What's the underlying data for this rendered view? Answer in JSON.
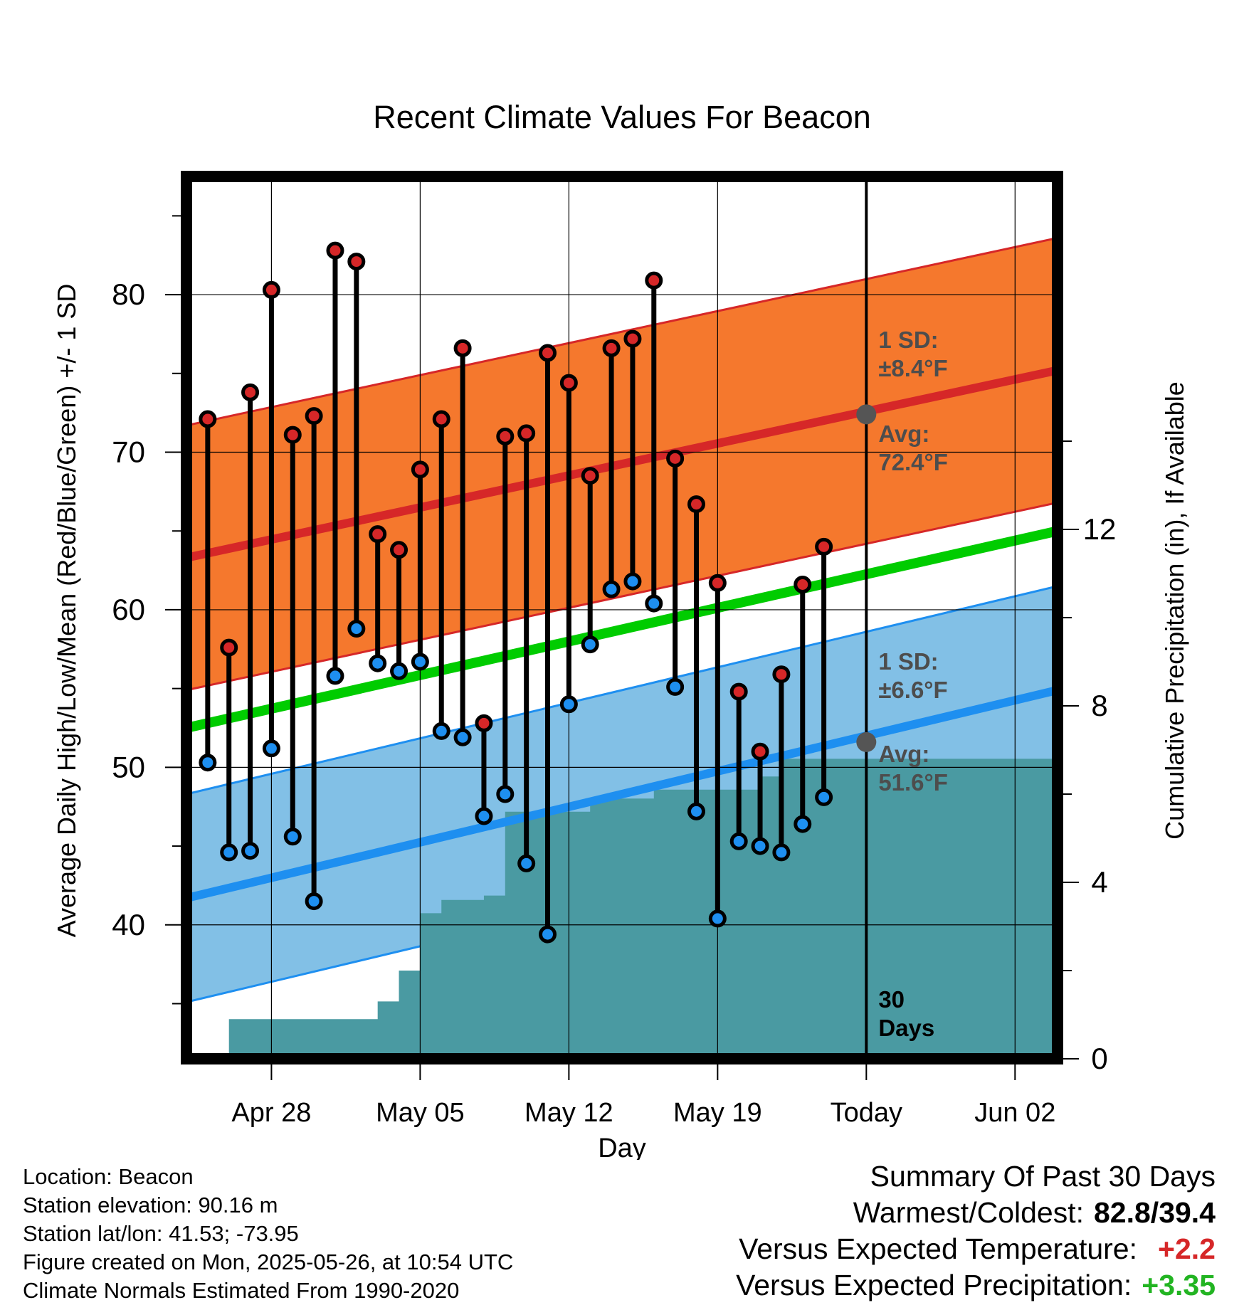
{
  "chart_data": {
    "type": "line",
    "title": "Recent Climate Values For Beacon",
    "xlabel": "Day",
    "ylabel": "Average Daily High/Low/Mean (Red/Blue/Green) +/- 1 SD",
    "y2label": "Cumulative Precipitation (in), If Available",
    "ylim": [
      31.5,
      87.5
    ],
    "y2lim": [
      0,
      20
    ],
    "xlim": [
      "2025-04-24",
      "2025-06-04"
    ],
    "x_ticks": [
      "2025-04-28",
      "2025-05-05",
      "2025-05-12",
      "2025-05-19",
      "2025-05-26",
      "2025-06-02"
    ],
    "x_tick_labels": [
      "Apr 28",
      "May 05",
      "May 12",
      "May 19",
      "Today",
      "Jun 02"
    ],
    "y_ticks": [
      40,
      50,
      60,
      70,
      80
    ],
    "y2_ticks": [
      0,
      4,
      8,
      12
    ],
    "grid": true,
    "dates": [
      "2025-04-25",
      "2025-04-26",
      "2025-04-27",
      "2025-04-28",
      "2025-04-29",
      "2025-04-30",
      "2025-05-01",
      "2025-05-02",
      "2025-05-03",
      "2025-05-04",
      "2025-05-05",
      "2025-05-06",
      "2025-05-07",
      "2025-05-08",
      "2025-05-09",
      "2025-05-10",
      "2025-05-11",
      "2025-05-12",
      "2025-05-13",
      "2025-05-14",
      "2025-05-15",
      "2025-05-16",
      "2025-05-17",
      "2025-05-18",
      "2025-05-19",
      "2025-05-20",
      "2025-05-21",
      "2025-05-22",
      "2025-05-23",
      "2025-05-24",
      "2025-05-25"
    ],
    "highs": [
      72.1,
      57.6,
      73.8,
      80.3,
      71.1,
      72.3,
      82.8,
      82.1,
      64.8,
      63.8,
      68.9,
      72.1,
      76.6,
      52.8,
      71.0,
      71.2,
      76.3,
      74.4,
      68.5,
      76.6,
      77.2,
      80.9,
      69.6,
      66.7,
      61.7,
      54.8,
      51.0,
      55.9,
      61.6,
      64.0,
      null
    ],
    "lows": [
      50.3,
      44.6,
      44.7,
      51.2,
      45.6,
      41.5,
      55.8,
      58.8,
      56.6,
      56.1,
      56.7,
      52.3,
      51.9,
      46.9,
      48.3,
      43.9,
      39.4,
      54.0,
      57.8,
      61.3,
      61.8,
      60.4,
      55.1,
      47.2,
      40.4,
      45.3,
      45.0,
      44.6,
      46.4,
      48.1,
      null
    ],
    "normal_high": {
      "start": 63.3,
      "end": 75.2,
      "sd": 8.4,
      "today": 72.4
    },
    "normal_low": {
      "start": 41.7,
      "end": 54.9,
      "sd": 6.6,
      "today": 51.6
    },
    "normal_mean": {
      "start": 52.5,
      "end": 65.0
    },
    "cumulative_precip": [
      0.0,
      0.9,
      0.9,
      0.9,
      0.9,
      0.9,
      0.9,
      0.9,
      1.3,
      2.0,
      3.3,
      3.6,
      3.6,
      3.7,
      5.6,
      5.6,
      5.6,
      5.6,
      5.9,
      5.9,
      5.9,
      6.1,
      6.1,
      6.1,
      6.1,
      6.1,
      6.4,
      6.8,
      6.8,
      6.8,
      6.8
    ],
    "colors": {
      "high_band": "#f5782d",
      "high_line": "#d62728",
      "low_band": "#82c0e6",
      "low_line": "#1e8ff0",
      "mean_line": "#00cc00",
      "precip": "#4a9aa2",
      "high_marker": "#d62728",
      "low_marker": "#1e8ff0",
      "annotation": "#4d4d4d"
    },
    "annotations": {
      "high_sd": [
        "1 SD:",
        "±8.4°F"
      ],
      "high_avg": [
        "Avg:",
        "72.4°F"
      ],
      "low_sd": [
        "1 SD:",
        "±6.6°F"
      ],
      "low_avg": [
        "Avg:",
        "51.6°F"
      ],
      "days": [
        "30",
        "Days"
      ]
    }
  },
  "footer": {
    "location": "Location: Beacon",
    "elevation": "Station elevation: 90.16 m",
    "latlon": "Station lat/lon: 41.53; -73.95",
    "created": "Figure created on Mon, 2025-05-26, at 10:54 UTC",
    "normals": "Climate Normals Estimated From 1990-2020"
  },
  "summary": {
    "title": "Summary Of Past 30 Days",
    "warmest_coldest_label": "Warmest/Coldest:",
    "warmest_coldest_value": "82.8/39.4",
    "temp_label": "Versus Expected Temperature:",
    "temp_value": "+2.2",
    "precip_label": "Versus Expected Precipitation:",
    "precip_value": "+3.35"
  }
}
